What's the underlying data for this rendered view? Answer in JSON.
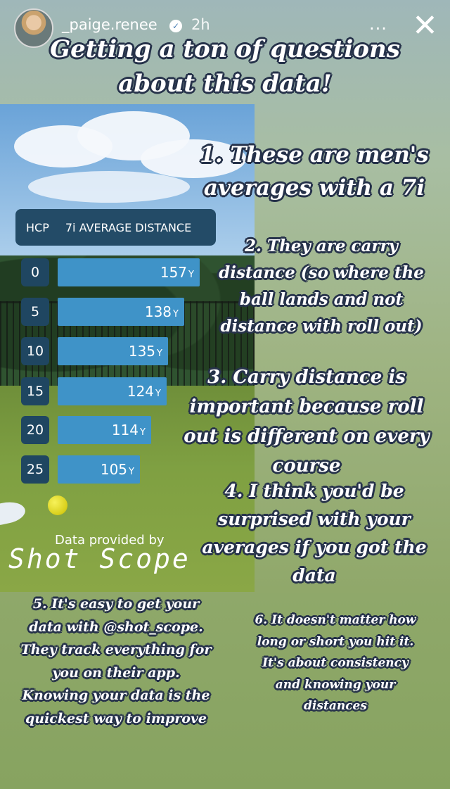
{
  "header": {
    "username": "_paige.renee",
    "verified_icon": "check",
    "timestamp": "2h",
    "more_icon": "...",
    "close_icon": "✕"
  },
  "title": {
    "line1": "Getting a ton of questions",
    "line2": "about this data!"
  },
  "table": {
    "col_hcp": "HCP",
    "col_distance": "7i AVERAGE DISTANCE",
    "unit": "Y",
    "rows": [
      {
        "hcp": "0",
        "distance": "157"
      },
      {
        "hcp": "5",
        "distance": "138"
      },
      {
        "hcp": "10",
        "distance": "135"
      },
      {
        "hcp": "15",
        "distance": "124"
      },
      {
        "hcp": "20",
        "distance": "114"
      },
      {
        "hcp": "25",
        "distance": "105"
      }
    ]
  },
  "credit": {
    "data_by": "Data provided by",
    "brand": "Shot Scope"
  },
  "points": {
    "p1_l1": "1. These are men's",
    "p1_l2": "averages with a 7i",
    "p2_l1": "2. They are carry",
    "p2_l2": "distance (so where the",
    "p2_l3": "ball lands and not",
    "p2_l4": "distance with roll out)",
    "p3_l1": "3. Carry distance is",
    "p3_l2": "important because roll",
    "p3_l3": "out is different on every",
    "p3_l4": "course",
    "p4_l1": "4. I think you'd be",
    "p4_l2": "surprised with your",
    "p4_l3": "averages if you got the",
    "p4_l4": "data",
    "p5_l1": "5. It's easy to get your",
    "p5_l2": "data with @shot_scope.",
    "p5_l3": "They track everything for",
    "p5_l4": "you on their app.",
    "p5_l5": "Knowing your data is the",
    "p5_l6": "quickest way to improve",
    "p6_l1": "6. It doesn't matter how",
    "p6_l2": "long or short you hit it.",
    "p6_l3": "It's about consistency",
    "p6_l4": "and knowing your",
    "p6_l5": "distances"
  },
  "colors": {
    "header_bg": "#234b67",
    "hcp_bg": "#1f4661",
    "bar_bg": "#3f93c8",
    "text_outline": "#26324a"
  }
}
